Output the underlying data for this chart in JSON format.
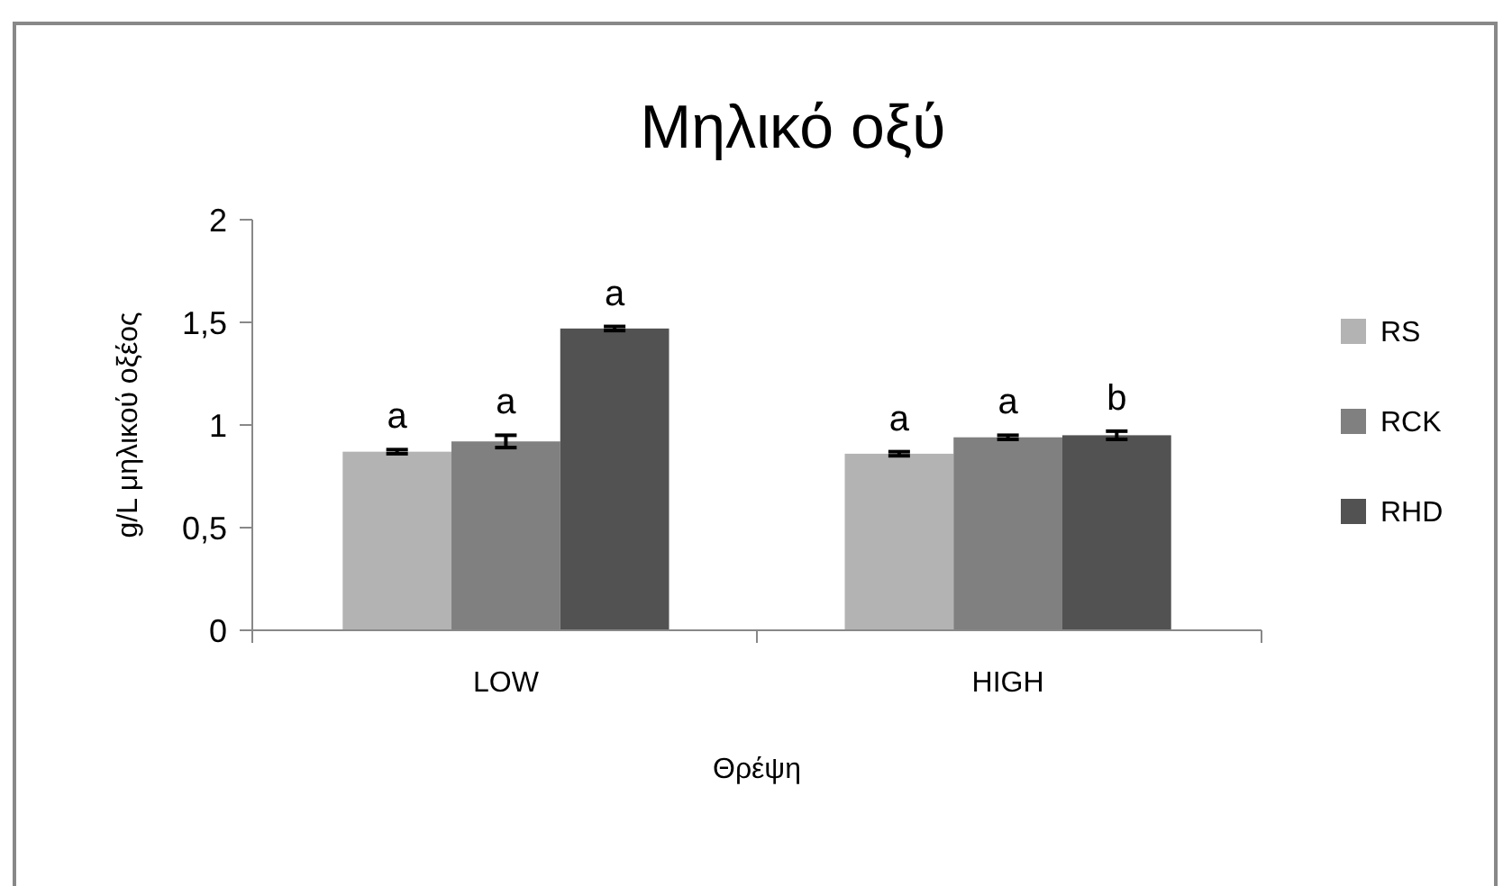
{
  "chart_data": {
    "type": "bar",
    "title": "Μηλικό οξύ",
    "xlabel": "Θρέψη",
    "ylabel": "g/L μηλικού οξέος",
    "categories": [
      "LOW",
      "HIGH"
    ],
    "series": [
      {
        "name": "RS",
        "color": "#b3b3b3",
        "values": [
          0.87,
          0.86
        ],
        "errors": [
          0.01,
          0.01
        ],
        "value_labels": [
          "a",
          "a"
        ]
      },
      {
        "name": "RCK",
        "color": "#808080",
        "values": [
          0.92,
          0.94
        ],
        "errors": [
          0.03,
          0.01
        ],
        "value_labels": [
          "a",
          "a"
        ]
      },
      {
        "name": "RHD",
        "color": "#525252",
        "values": [
          1.47,
          0.95
        ],
        "errors": [
          0.01,
          0.02
        ],
        "value_labels": [
          "a",
          "b"
        ]
      }
    ],
    "ylim": [
      0,
      2
    ],
    "yticks": [
      0,
      {
        "value": 0.5,
        "label": "0,5"
      },
      1,
      {
        "value": 1.5,
        "label": "1,5"
      },
      2
    ],
    "legend": "right"
  }
}
